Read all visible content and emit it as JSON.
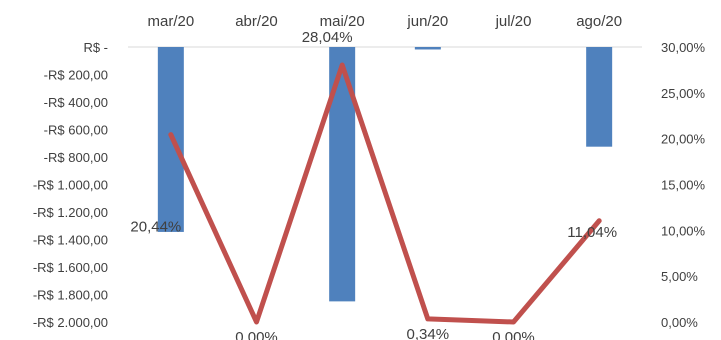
{
  "chart_data": {
    "type": "bar+line",
    "categories": [
      "mar/20",
      "abr/20",
      "mai/20",
      "jun/20",
      "jul/20",
      "ago/20"
    ],
    "bar_series": {
      "values": [
        -1345,
        0,
        -1850,
        -18,
        0,
        -725
      ],
      "color": "#4f81bd",
      "axis": "left"
    },
    "line_series": {
      "values": [
        20.44,
        0.0,
        28.04,
        0.34,
        0.0,
        11.04
      ],
      "data_labels": [
        "20,44%",
        "0,00%",
        "28,04%",
        "0,34%",
        "0,00%",
        "11,04%"
      ],
      "color": "#c0504d",
      "axis": "right"
    },
    "y_left": {
      "range": [
        -2000,
        0
      ],
      "ticks": [
        0,
        -200,
        -400,
        -600,
        -800,
        -1000,
        -1200,
        -1400,
        -1600,
        -1800,
        -2000
      ],
      "tick_labels": [
        "R$ -",
        "-R$ 200,00",
        "-R$ 400,00",
        "-R$ 600,00",
        "-R$ 800,00",
        "-R$ 1.000,00",
        "-R$ 1.200,00",
        "-R$ 1.400,00",
        "-R$ 1.600,00",
        "-R$ 1.800,00",
        "-R$ 2.000,00"
      ]
    },
    "y_right": {
      "range": [
        0,
        30
      ],
      "ticks": [
        30,
        25,
        20,
        15,
        10,
        5,
        0
      ],
      "tick_labels": [
        "30,00%",
        "25,00%",
        "20,00%",
        "15,00%",
        "10,00%",
        "5,00%",
        "0,00%"
      ]
    },
    "x_axis_position": "top",
    "grid": false,
    "legend": "none"
  }
}
